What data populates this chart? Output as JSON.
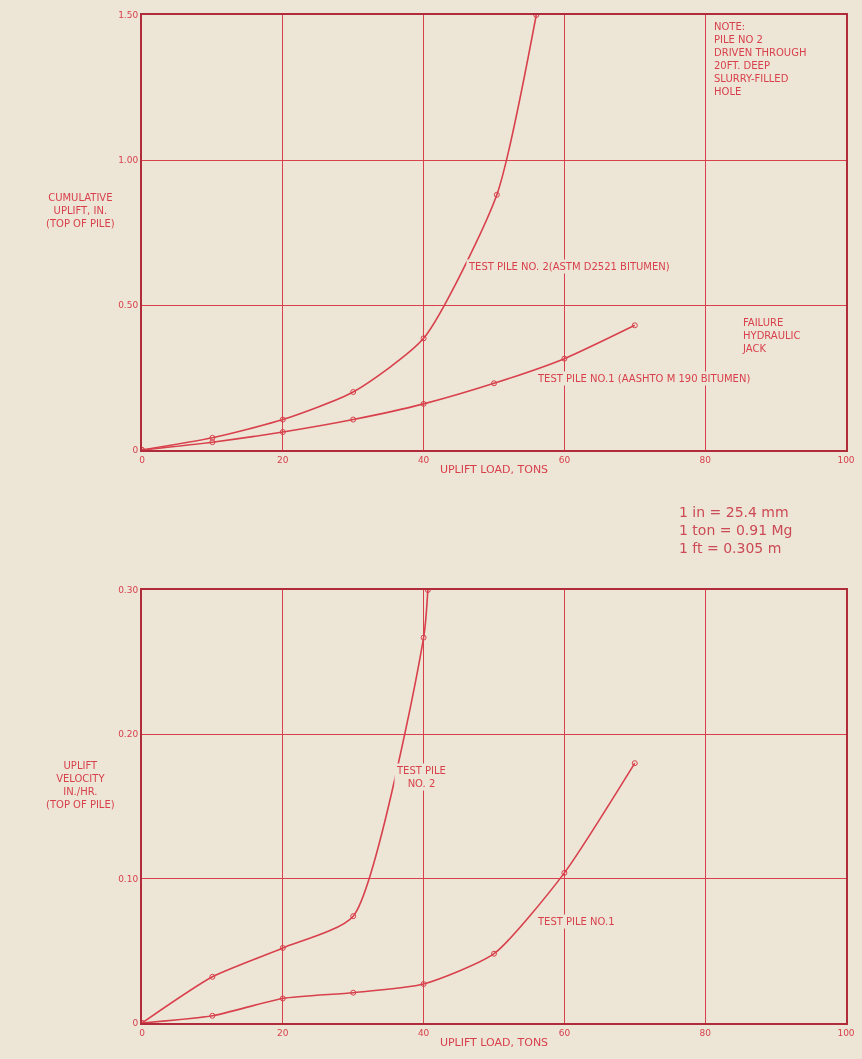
{
  "chart_data": [
    {
      "type": "line",
      "xlabel": "UPLIFT LOAD, TONS",
      "ylabel": "CUMULATIVE\nUPLIFT, IN.\n(TOP OF PILE)",
      "xlim": [
        0,
        100
      ],
      "xticks": [
        0,
        20,
        40,
        60,
        80,
        100
      ],
      "ylim": [
        0,
        1.5
      ],
      "yticks": [
        0,
        {
          "value": 0.5,
          "label": "0.50"
        },
        {
          "value": 1,
          "label": "1.00"
        },
        {
          "value": 1.5,
          "label": "1.50"
        }
      ],
      "grid": true,
      "legend": false,
      "marker": "circle",
      "line_style": "solid",
      "series": [
        {
          "name": "TEST PILE NO. 2(ASTM D2521 BITUMEN)",
          "color": "#d8404c",
          "x": [
            0,
            10,
            20,
            30,
            40,
            50.4,
            56
          ],
          "values": [
            0,
            0.042,
            0.105,
            0.2,
            0.385,
            0.88,
            1.5
          ]
        },
        {
          "name": "TEST PILE NO.1 (AASHTO M 190 BITUMEN)",
          "color": "#d8404c",
          "x": [
            0,
            10,
            20,
            30,
            40,
            50,
            60,
            70
          ],
          "values": [
            0,
            0.027,
            0.062,
            0.105,
            0.159,
            0.23,
            0.315,
            0.43
          ]
        }
      ],
      "annotations": [
        "NOTE:\nPILE NO 2\nDRIVEN THROUGH\n20FT. DEEP\nSLURRY-FILLED\nHOLE",
        "FAILURE\nHYDRAULIC\nJACK",
        "1 in = 25.4 mm\n1 ton = 0.91 Mg\n1 ft = 0.305 m"
      ]
    },
    {
      "type": "line",
      "xlabel": "UPLIFT LOAD, TONS",
      "ylabel": "UPLIFT\nVELOCITY\nIN./HR.\n(TOP OF PILE)",
      "xlim": [
        0,
        100
      ],
      "xticks": [
        0,
        20,
        40,
        60,
        80,
        100
      ],
      "ylim": [
        0,
        0.3
      ],
      "yticks": [
        0,
        {
          "value": 0.1,
          "label": "0.10"
        },
        {
          "value": 0.2,
          "label": "0.20"
        },
        {
          "value": 0.3,
          "label": "0.30"
        }
      ],
      "grid": true,
      "legend": false,
      "marker": "circle",
      "line_style": "solid",
      "series": [
        {
          "name": "TEST PILE\nNO. 2",
          "color": "#d8404c",
          "x": [
            0,
            10,
            20,
            30,
            40,
            40.6
          ],
          "values": [
            0,
            0.032,
            0.052,
            0.074,
            0.267,
            0.3
          ]
        },
        {
          "name": "TEST PILE NO.1",
          "color": "#d8404c",
          "x": [
            0,
            10,
            20,
            30,
            40,
            50,
            60,
            70
          ],
          "values": [
            0,
            0.005,
            0.017,
            0.021,
            0.027,
            0.048,
            0.104,
            0.18
          ]
        }
      ]
    }
  ]
}
